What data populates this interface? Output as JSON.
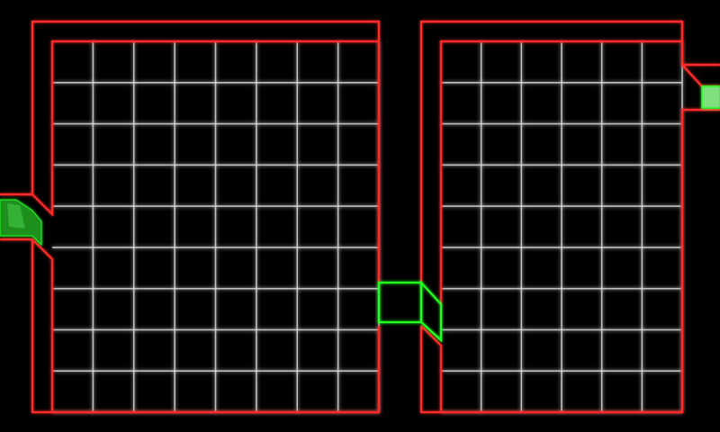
{
  "game": {
    "rooms": [
      {
        "id": "left-room",
        "grid_columns": 8,
        "grid_rows": 9
      },
      {
        "id": "right-room",
        "grid_columns": 6,
        "grid_rows": 9
      }
    ],
    "doorways": [
      "left-entrance",
      "middle-passage",
      "right-exit"
    ],
    "colors": {
      "background": "#000000",
      "wall": "#ff2a2a",
      "grid": "#d9d9d9",
      "door_outline": "#22ff22",
      "door_fill": "#1f8f1f",
      "exit_fill": "#7fe07f"
    }
  }
}
